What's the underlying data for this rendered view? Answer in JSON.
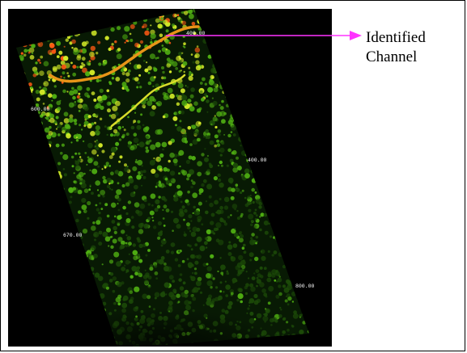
{
  "annotation": {
    "line1": "Identified",
    "line2": "Channel",
    "arrow_color": "#ff33ff"
  },
  "seismic_slice": {
    "colormap": [
      "#000000",
      "#1c4a08",
      "#4fae12",
      "#d4ec28",
      "#ff5a14"
    ],
    "labels": [
      "400.00",
      "400.00",
      "600.00",
      "670.00",
      "800.00"
    ]
  }
}
